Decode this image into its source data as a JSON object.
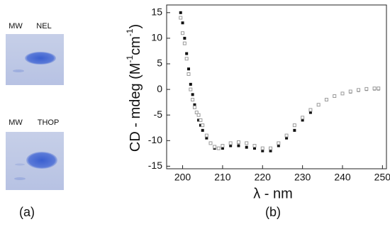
{
  "chart_data": {
    "type": "scatter",
    "y_label_parts": [
      "CD - mdeg (M",
      "-1",
      "cm",
      "-1",
      ")"
    ],
    "x_label": "λ - nm",
    "x": [
      199.5,
      200,
      200.5,
      201,
      201.5,
      202,
      202.5,
      203,
      203.5,
      204,
      204.5,
      205,
      206,
      207,
      208,
      209,
      210,
      212,
      214,
      216,
      218,
      220,
      222,
      224,
      226,
      228,
      230,
      232,
      234,
      236,
      238,
      240,
      242,
      244,
      246,
      248,
      249
    ],
    "series": [
      {
        "color": "#111111",
        "marker": "filled-square",
        "values": [
          15,
          13,
          10,
          7,
          4,
          1,
          -1,
          -3,
          -4.5,
          -6,
          -7,
          -8,
          -9.5,
          -10.5,
          -11.5,
          -11.5,
          -11.5,
          -11,
          -11,
          -11.3,
          -11.5,
          -12,
          -12,
          -11,
          -9.5,
          -8,
          -6,
          -4.5,
          -3,
          -2,
          -1.3,
          -0.8,
          -0.5,
          -0.2,
          0,
          0.1,
          0.1
        ]
      },
      {
        "color": "#9a9a9a",
        "marker": "open-square",
        "values": [
          14,
          11,
          9,
          6,
          3,
          0,
          -2,
          -3.5,
          -4.5,
          -5,
          -6,
          -7,
          -9,
          -10.5,
          -11.2,
          -11.5,
          -11,
          -10.5,
          -10.3,
          -10.5,
          -11,
          -11.5,
          -11.5,
          -10.5,
          -9,
          -7,
          -5.5,
          -4,
          -3,
          -2,
          -1.3,
          -0.8,
          -0.4,
          -0.1,
          0.1,
          0.2,
          0.2
        ]
      }
    ],
    "xlim": [
      196,
      251
    ],
    "xticks": [
      200,
      210,
      220,
      230,
      240,
      250
    ],
    "ylim": [
      -15.5,
      16.5
    ],
    "yticks": [
      -15,
      -10,
      -5,
      0,
      5,
      10,
      15
    ]
  },
  "gels": [
    {
      "lanes": [
        "MW",
        "NEL"
      ]
    },
    {
      "lanes": [
        "MW",
        "THOP"
      ]
    }
  ],
  "panel_labels": [
    "(a)",
    "(b)"
  ]
}
